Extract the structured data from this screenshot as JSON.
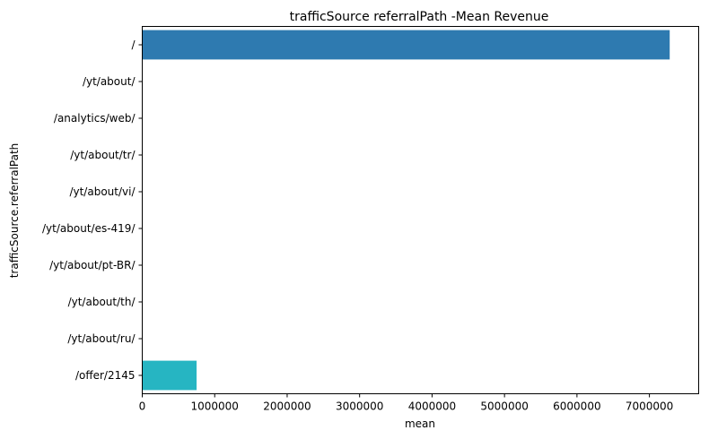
{
  "chart_data": {
    "type": "bar",
    "orientation": "horizontal",
    "title": "trafficSource referralPath -Mean Revenue",
    "xlabel": "mean",
    "ylabel": "trafficSource.referralPath",
    "categories": [
      "/",
      "/yt/about/",
      "/analytics/web/",
      "/yt/about/tr/",
      "/yt/about/vi/",
      "/yt/about/es-419/",
      "/yt/about/pt-BR/",
      "/yt/about/th/",
      "/yt/about/ru/",
      "/offer/2145"
    ],
    "values": [
      7280000,
      0,
      0,
      0,
      0,
      0,
      0,
      0,
      0,
      750000
    ],
    "colors": [
      "#2e7ab0",
      "#4a66a8",
      "#6a5aa0",
      "#8f5b9e",
      "#b0609a",
      "#c96a8a",
      "#d8805e",
      "#c9a43c",
      "#9cba3a",
      "#26b5c2"
    ],
    "xlim": [
      0,
      7680000
    ],
    "xticks": [
      0,
      1000000,
      2000000,
      3000000,
      4000000,
      5000000,
      6000000,
      7000000
    ],
    "xtick_labels": [
      "0",
      "1000000",
      "2000000",
      "3000000",
      "4000000",
      "5000000",
      "6000000",
      "7000000"
    ],
    "grid": false
  }
}
